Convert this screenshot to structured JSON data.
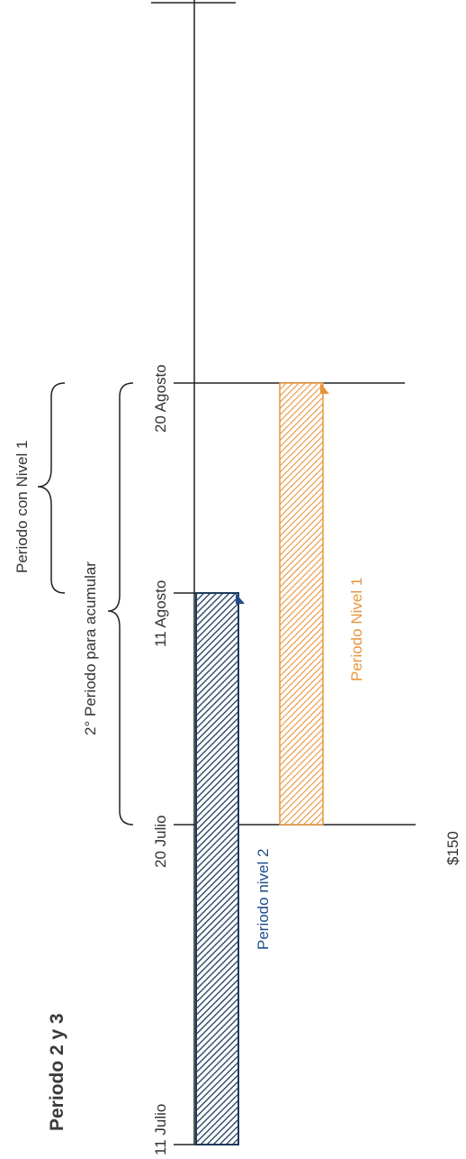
{
  "title": "Periodo 2 y 3",
  "dates": {
    "start": "11 Julio",
    "mid": "20 Julio",
    "aug11": "11 Agosto",
    "aug20": "20 Agosto"
  },
  "brackets": {
    "accumulate": "2° Periodo para acumular",
    "level1": "Periodo con Nivel 1"
  },
  "bars": {
    "level2": "Periodo nivel 2",
    "level1": "Periodo Nivel 1"
  },
  "amount": "$150",
  "colors": {
    "level2": "#1f3a5c",
    "level2_text": "#1f4d8c",
    "level1": "#e8953a",
    "level1_text": "#e8953a",
    "axis": "#222222",
    "text": "#333333"
  }
}
